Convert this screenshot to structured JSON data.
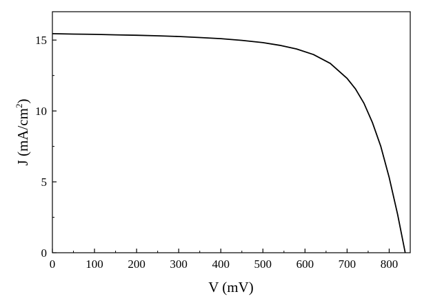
{
  "chart_data": {
    "type": "line",
    "title": "",
    "xlabel": "V (mV)",
    "ylabel": {
      "main": "J (mA/cm",
      "superscript": "2",
      "close": ")"
    },
    "xlim": [
      0,
      850
    ],
    "ylim": [
      0,
      17
    ],
    "xticks": [
      0,
      100,
      200,
      300,
      400,
      500,
      600,
      700,
      800
    ],
    "yticks": [
      0,
      5,
      10,
      15
    ],
    "grid": false,
    "legend": "none",
    "series": [
      {
        "color": "#000000",
        "x": [
          0,
          50,
          100,
          150,
          200,
          250,
          300,
          350,
          400,
          450,
          500,
          540,
          580,
          620,
          660,
          700,
          720,
          740,
          760,
          780,
          800,
          820,
          838
        ],
        "y": [
          15.45,
          15.42,
          15.4,
          15.37,
          15.34,
          15.3,
          15.25,
          15.18,
          15.1,
          14.98,
          14.82,
          14.63,
          14.37,
          13.98,
          13.35,
          12.3,
          11.55,
          10.55,
          9.2,
          7.5,
          5.3,
          2.7,
          0
        ]
      }
    ]
  }
}
